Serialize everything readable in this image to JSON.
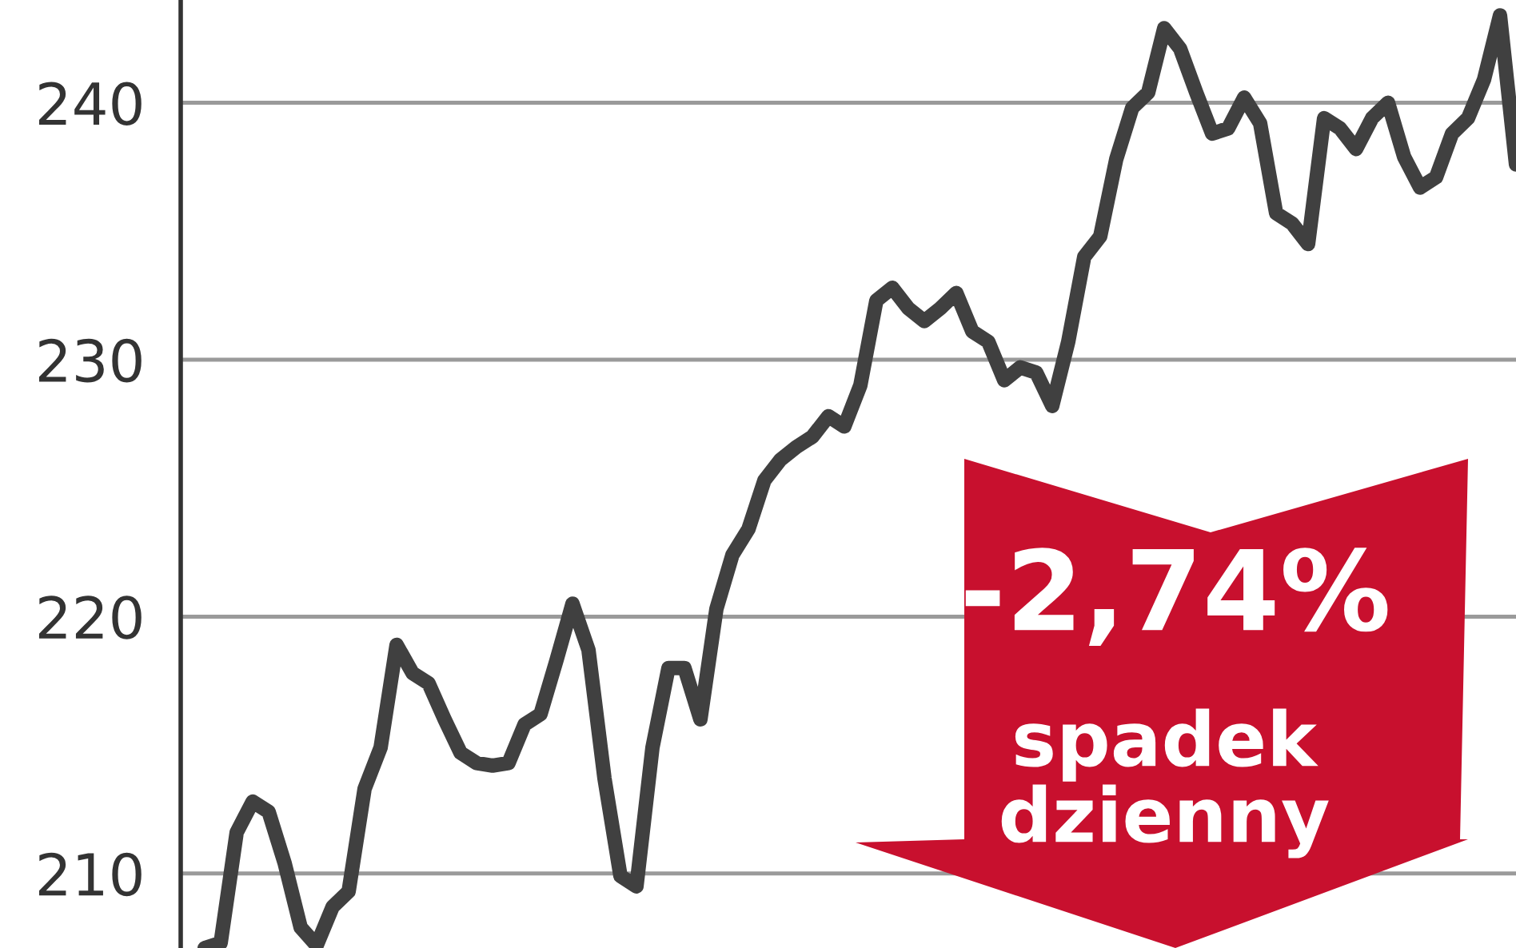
{
  "chart_data": {
    "type": "line",
    "categories": [
      null,
      null,
      null,
      null,
      null,
      null,
      null,
      null,
      null,
      null,
      null,
      null,
      null,
      null,
      null,
      null,
      null,
      null,
      null,
      null,
      null,
      null,
      null,
      null,
      null,
      null,
      null,
      null,
      null,
      null,
      null,
      null,
      null,
      null,
      null,
      null,
      null,
      null,
      null,
      null,
      null,
      null,
      null,
      null,
      null,
      null,
      null,
      null,
      null,
      null,
      null,
      null,
      null,
      null,
      null,
      null,
      null,
      null,
      null,
      null,
      null,
      null,
      null,
      null,
      null,
      null,
      null,
      null,
      null,
      null,
      null,
      null,
      null,
      null,
      null,
      null,
      null,
      null,
      null,
      null,
      null,
      null,
      null,
      null
    ],
    "values": [
      null,
      207.1,
      207.3,
      211.6,
      212.8,
      212.4,
      210.4,
      207.9,
      207.2,
      208.7,
      209.3,
      213.3,
      214.9,
      218.9,
      217.8,
      217.4,
      216.0,
      214.7,
      214.3,
      214.2,
      214.3,
      215.8,
      216.2,
      218.3,
      220.5,
      218.7,
      213.7,
      209.9,
      209.5,
      214.9,
      218.0,
      218.0,
      216.0,
      220.3,
      222.4,
      223.4,
      225.3,
      226.1,
      226.6,
      227.0,
      227.8,
      227.4,
      229.0,
      232.3,
      232.8,
      232.0,
      231.5,
      232.0,
      232.6,
      231.1,
      230.7,
      229.2,
      229.7,
      229.5,
      228.2,
      230.7,
      234.0,
      234.8,
      237.8,
      239.8,
      240.4,
      242.9,
      242.1,
      240.4,
      238.8,
      239.0,
      240.2,
      239.2,
      235.7,
      235.3,
      234.5,
      239.4,
      239.0,
      238.2,
      239.4,
      240.0,
      237.9,
      236.7,
      237.1,
      238.8,
      239.4,
      240.9,
      243.4,
      237.6
    ],
    "color": "#404040",
    "ylim": [
      207.1,
      244
    ],
    "yticks": [
      210,
      220,
      230,
      240
    ],
    "grid": "y",
    "tick_labels": "y",
    "annotations": [
      "-2,74%",
      "spadek dzienny"
    ]
  }
}
